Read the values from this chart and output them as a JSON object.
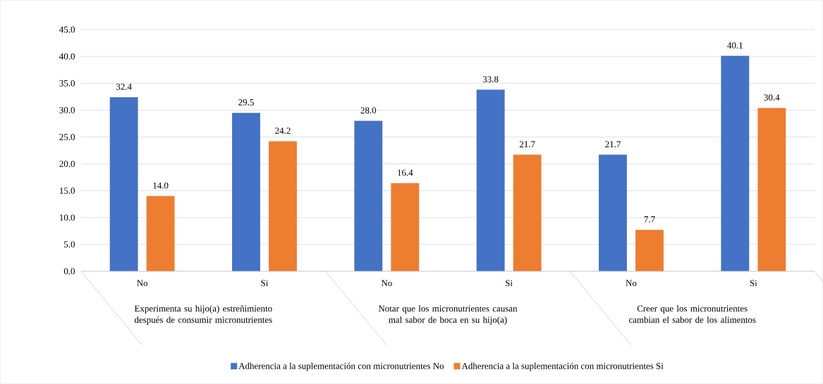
{
  "chart_data": {
    "type": "bar",
    "categories": [
      "No",
      "Si",
      "No",
      "Si",
      "No",
      "Si"
    ],
    "series": [
      {
        "name": "Adherencia a la suplementación con micronutrientes No",
        "color": "#4472c4",
        "values": [
          32.4,
          29.5,
          28.0,
          33.8,
          21.7,
          40.1
        ],
        "value_labels": [
          "32.4",
          "29.5",
          "28.0",
          "33.8",
          "21.7",
          "40.1"
        ]
      },
      {
        "name": "Adherencia a la suplementación con micronutrientes Si",
        "color": "#ed7d31",
        "values": [
          14.0,
          24.2,
          16.4,
          21.7,
          7.7,
          30.4
        ],
        "value_labels": [
          "14.0",
          "24.2",
          "16.4",
          "21.7",
          "7.7",
          "30.4"
        ]
      }
    ],
    "ylim": [
      0,
      45
    ],
    "yticks": [
      {
        "value": 0,
        "label": "0.0"
      },
      {
        "value": 5,
        "label": "5.0"
      },
      {
        "value": 10,
        "label": "10.0"
      },
      {
        "value": 15,
        "label": "15.0"
      },
      {
        "value": 20,
        "label": "20.0"
      },
      {
        "value": 25,
        "label": "25.0"
      },
      {
        "value": 30,
        "label": "30.0"
      },
      {
        "value": 35,
        "label": "35.0"
      },
      {
        "value": 40,
        "label": "40.0"
      },
      {
        "value": 45,
        "label": "45.0"
      }
    ],
    "grid": "y",
    "legend": "bottom",
    "annotations": [
      "Experimenta su hijo(a) estreñimiento después de consumir micronutrientes",
      "Notar que los micronutrientes causan mal sabor de boca en su hijo(a)",
      "Creer que los micronutrientes cambian el sabor de los alimentos"
    ]
  }
}
